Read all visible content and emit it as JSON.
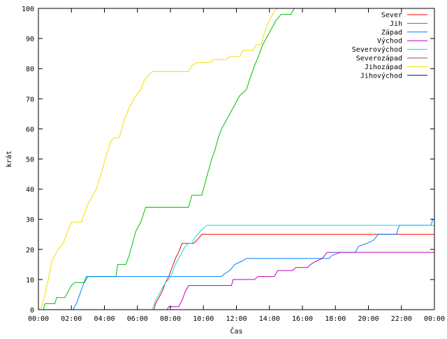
{
  "chart_data": {
    "type": "line",
    "title": "",
    "xlabel": "Čas",
    "ylabel": "krát",
    "xlim": [
      0,
      24
    ],
    "ylim": [
      0,
      100
    ],
    "x_unit": "hours",
    "grid": false,
    "legend_position": "top-right",
    "x_tick_labels": [
      "00:00",
      "02:00",
      "04:00",
      "06:00",
      "08:00",
      "10:00",
      "12:00",
      "14:00",
      "16:00",
      "18:00",
      "20:00",
      "22:00",
      "00:00"
    ],
    "y_tick_labels": [
      "0",
      "10",
      "20",
      "30",
      "40",
      "50",
      "60",
      "70",
      "80",
      "90",
      "100"
    ],
    "series": [
      {
        "name": "Sever",
        "color": "#ff0000",
        "points": [
          [
            0,
            0
          ],
          [
            7.0,
            0
          ],
          [
            7.1,
            2
          ],
          [
            7.3,
            4
          ],
          [
            7.5,
            6
          ],
          [
            7.7,
            9
          ],
          [
            7.9,
            11
          ],
          [
            8.1,
            14
          ],
          [
            8.3,
            17
          ],
          [
            8.5,
            19
          ],
          [
            8.7,
            22
          ],
          [
            9.4,
            22
          ],
          [
            9.6,
            23
          ],
          [
            9.9,
            25
          ],
          [
            24,
            25
          ]
        ]
      },
      {
        "name": "Jih",
        "color": "#00c000",
        "points": [
          [
            0,
            0
          ],
          [
            0.3,
            0
          ],
          [
            0.4,
            2
          ],
          [
            1.0,
            2
          ],
          [
            1.1,
            4
          ],
          [
            1.6,
            4
          ],
          [
            1.8,
            6
          ],
          [
            2.0,
            8
          ],
          [
            2.2,
            9
          ],
          [
            2.8,
            9
          ],
          [
            3.0,
            11
          ],
          [
            4.7,
            11
          ],
          [
            4.8,
            15
          ],
          [
            5.3,
            15
          ],
          [
            5.5,
            18
          ],
          [
            5.7,
            22
          ],
          [
            5.9,
            26
          ],
          [
            6.2,
            29
          ],
          [
            6.5,
            34
          ],
          [
            9.1,
            34
          ],
          [
            9.3,
            38
          ],
          [
            9.9,
            38
          ],
          [
            10.1,
            42
          ],
          [
            10.3,
            46
          ],
          [
            10.5,
            50
          ],
          [
            10.7,
            53
          ],
          [
            10.9,
            57
          ],
          [
            11.1,
            60
          ],
          [
            11.3,
            62
          ],
          [
            11.5,
            64
          ],
          [
            11.7,
            66
          ],
          [
            11.9,
            68
          ],
          [
            12.2,
            71
          ],
          [
            12.6,
            73
          ],
          [
            12.9,
            78
          ],
          [
            13.1,
            81
          ],
          [
            13.4,
            85
          ],
          [
            13.6,
            88
          ],
          [
            13.8,
            90
          ],
          [
            14.0,
            92
          ],
          [
            14.2,
            94
          ],
          [
            14.4,
            96
          ],
          [
            14.7,
            98
          ],
          [
            15.3,
            98
          ],
          [
            15.5,
            100
          ],
          [
            24,
            100
          ]
        ]
      },
      {
        "name": "Západ",
        "color": "#0080ff",
        "points": [
          [
            0,
            0
          ],
          [
            2.1,
            0
          ],
          [
            2.3,
            2
          ],
          [
            2.5,
            5
          ],
          [
            2.7,
            8
          ],
          [
            2.9,
            11
          ],
          [
            11.1,
            11
          ],
          [
            11.3,
            12
          ],
          [
            11.6,
            13
          ],
          [
            11.9,
            15
          ],
          [
            12.3,
            16
          ],
          [
            12.6,
            17
          ],
          [
            17.6,
            17
          ],
          [
            17.8,
            18
          ],
          [
            18.3,
            19
          ],
          [
            19.2,
            19
          ],
          [
            19.4,
            21
          ],
          [
            19.9,
            22
          ],
          [
            20.3,
            23
          ],
          [
            20.6,
            25
          ],
          [
            21.7,
            25
          ],
          [
            21.8,
            27
          ],
          [
            21.9,
            28
          ],
          [
            23.8,
            28
          ],
          [
            23.9,
            30
          ],
          [
            24,
            30
          ]
        ]
      },
      {
        "name": "Východ",
        "color": "#c000c0",
        "points": [
          [
            0,
            0
          ],
          [
            7.8,
            0
          ],
          [
            7.9,
            1
          ],
          [
            8.5,
            1
          ],
          [
            8.7,
            3
          ],
          [
            8.9,
            6
          ],
          [
            9.1,
            8
          ],
          [
            11.7,
            8
          ],
          [
            11.8,
            10
          ],
          [
            13.1,
            10
          ],
          [
            13.3,
            11
          ],
          [
            14.3,
            11
          ],
          [
            14.5,
            13
          ],
          [
            15.4,
            13
          ],
          [
            15.6,
            14
          ],
          [
            16.3,
            14
          ],
          [
            16.5,
            15
          ],
          [
            16.8,
            16
          ],
          [
            17.2,
            17
          ],
          [
            17.5,
            19
          ],
          [
            24,
            19
          ]
        ]
      },
      {
        "name": "Severovýchod",
        "color": "#00e0f0",
        "points": [
          [
            0,
            0
          ],
          [
            6.9,
            0
          ],
          [
            7.1,
            3
          ],
          [
            7.3,
            5
          ],
          [
            7.5,
            7
          ],
          [
            7.7,
            9
          ],
          [
            7.9,
            10
          ],
          [
            8.1,
            12
          ],
          [
            8.3,
            15
          ],
          [
            8.5,
            17
          ],
          [
            8.7,
            19
          ],
          [
            8.9,
            21
          ],
          [
            9.1,
            22
          ],
          [
            9.3,
            22
          ],
          [
            9.5,
            24
          ],
          [
            9.8,
            26
          ],
          [
            10.2,
            28
          ],
          [
            24,
            28
          ]
        ]
      },
      {
        "name": "Severozápad",
        "color": "#a0522d",
        "points": []
      },
      {
        "name": "Jihozápad",
        "color": "#f0e000",
        "points": [
          [
            0,
            0
          ],
          [
            0.2,
            1
          ],
          [
            0.4,
            5
          ],
          [
            0.6,
            10
          ],
          [
            0.8,
            16
          ],
          [
            1.0,
            18
          ],
          [
            1.2,
            20
          ],
          [
            1.5,
            22
          ],
          [
            1.7,
            25
          ],
          [
            2.0,
            29
          ],
          [
            2.6,
            29
          ],
          [
            2.8,
            32
          ],
          [
            3.0,
            35
          ],
          [
            3.2,
            37
          ],
          [
            3.5,
            40
          ],
          [
            3.8,
            45
          ],
          [
            4.1,
            51
          ],
          [
            4.4,
            56
          ],
          [
            4.6,
            57
          ],
          [
            4.9,
            57
          ],
          [
            5.2,
            63
          ],
          [
            5.5,
            67
          ],
          [
            5.9,
            71
          ],
          [
            6.2,
            73
          ],
          [
            6.4,
            76
          ],
          [
            6.7,
            78
          ],
          [
            6.9,
            79
          ],
          [
            9.1,
            79
          ],
          [
            9.3,
            81
          ],
          [
            9.6,
            82
          ],
          [
            10.4,
            82
          ],
          [
            10.6,
            83
          ],
          [
            11.4,
            83
          ],
          [
            11.6,
            84
          ],
          [
            12.2,
            84
          ],
          [
            12.4,
            86
          ],
          [
            13.0,
            86
          ],
          [
            13.2,
            88
          ],
          [
            13.5,
            88
          ],
          [
            13.7,
            92
          ],
          [
            13.9,
            95
          ],
          [
            14.1,
            97
          ],
          [
            14.3,
            99
          ],
          [
            14.5,
            100
          ],
          [
            24,
            100
          ]
        ]
      },
      {
        "name": "Jihovýchod",
        "color": "#000080",
        "points": []
      }
    ]
  }
}
